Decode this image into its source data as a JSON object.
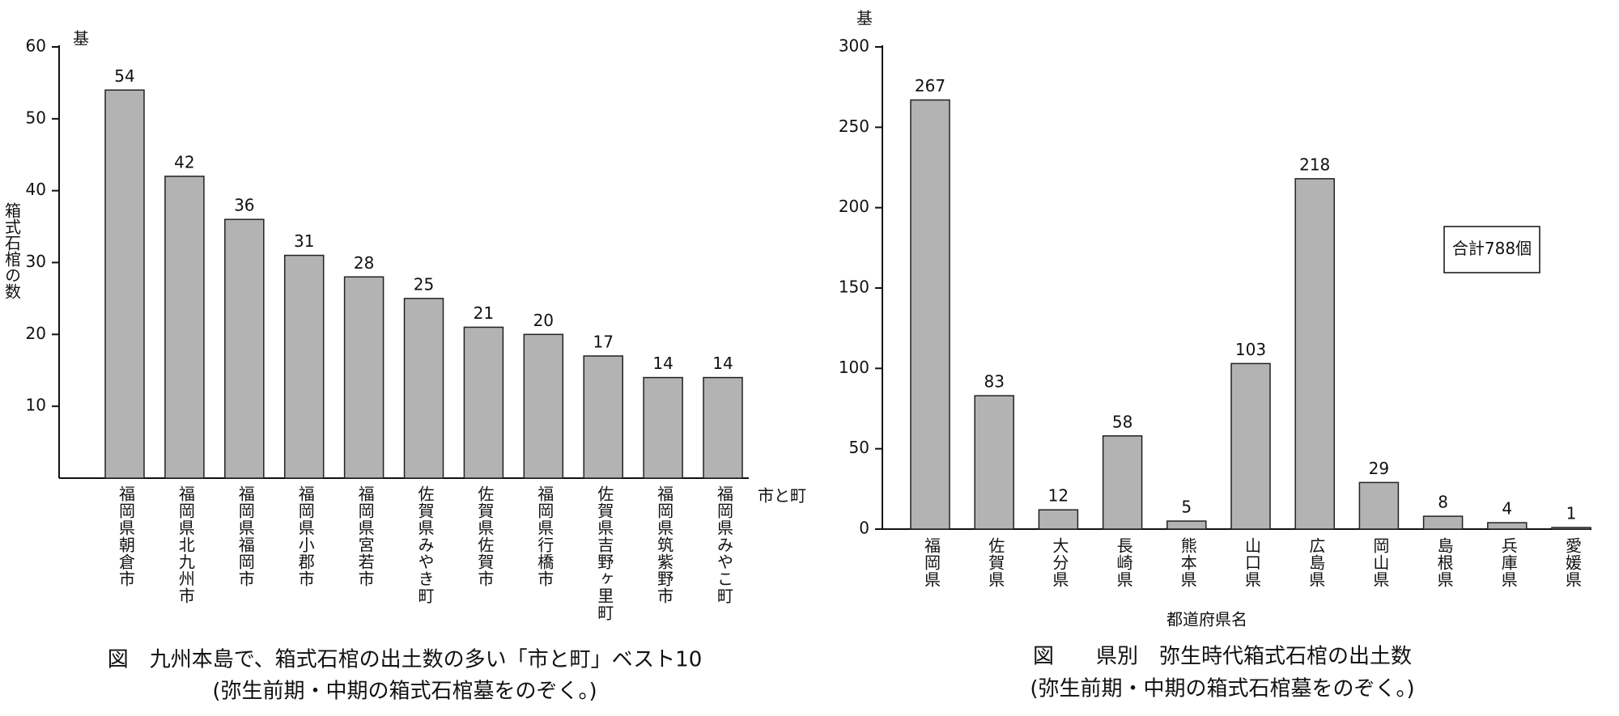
{
  "chart_data": [
    {
      "type": "bar",
      "title": "図　九州本島で、箱式石棺の出土数の多い「市と町」ベスト10",
      "subtitle": "(弥生前期・中期の箱式石棺墓をのぞく。)",
      "y_unit": "基",
      "ylabel": "箱式石棺の数",
      "xlabel": "市と町",
      "categories": [
        "福岡県朝倉市",
        "福岡県北九州市",
        "福岡県福岡市",
        "福岡県小郡市",
        "福岡県宮若市",
        "佐賀県みやき町",
        "佐賀県佐賀市",
        "福岡県行橋市",
        "佐賀県吉野ヶ里町",
        "福岡県筑紫野市",
        "福岡県みやこ町"
      ],
      "values": [
        54,
        42,
        36,
        31,
        28,
        25,
        21,
        20,
        17,
        14,
        14
      ],
      "color": "#b3b3b3",
      "ylim": [
        0,
        60
      ],
      "yticks": [
        10,
        20,
        30,
        40,
        50,
        60
      ]
    },
    {
      "type": "bar",
      "title": "図　　県別　弥生時代箱式石棺の出土数",
      "subtitle": "(弥生前期・中期の箱式石棺墓をのぞく。)",
      "y_unit": "基",
      "xlabel": "都道府県名",
      "annotation": "合計788個",
      "categories": [
        "福岡県",
        "佐賀県",
        "大分県",
        "長崎県",
        "熊本県",
        "山口県",
        "広島県",
        "岡山県",
        "島根県",
        "兵庫県",
        "愛媛県"
      ],
      "values": [
        267,
        83,
        12,
        58,
        5,
        103,
        218,
        29,
        8,
        4,
        1
      ],
      "color": "#b3b3b3",
      "ylim": [
        0,
        300
      ],
      "yticks": [
        0,
        50,
        100,
        150,
        200,
        250,
        300
      ]
    }
  ]
}
